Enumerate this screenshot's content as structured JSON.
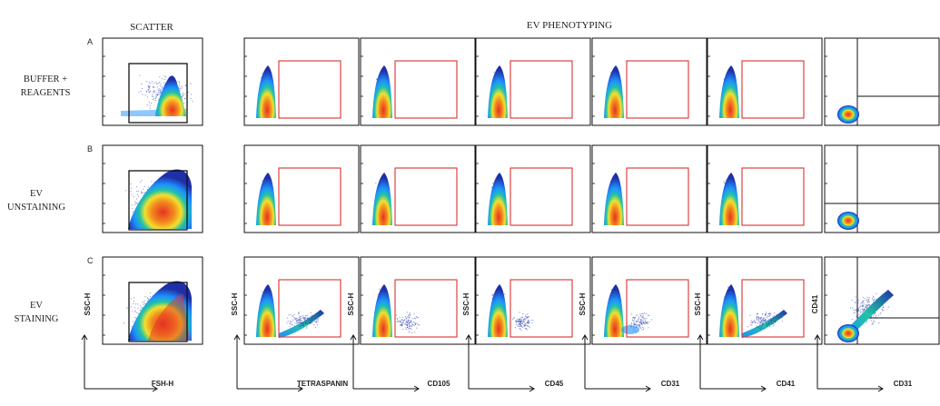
{
  "chart_data": {
    "type": "scatter",
    "subtype": "flow-cytometry-density-grid",
    "headers": {
      "scatter": "SCATTER",
      "phenotyping": "EV PHENOTYPING"
    },
    "rows": [
      {
        "letter": "A",
        "label_lines": [
          "BUFFER +",
          "REAGENTS"
        ],
        "condition": "buffer"
      },
      {
        "letter": "B",
        "label_lines": [
          "EV",
          "UNSTAINING"
        ],
        "condition": "unstained"
      },
      {
        "letter": "C",
        "label_lines": [
          "EV",
          "STAINING"
        ],
        "condition": "stained"
      }
    ],
    "columns": [
      {
        "kind": "scatter",
        "xlabel": "FSH-H",
        "ylabel": "SSC-H"
      },
      {
        "kind": "marker",
        "xlabel": "TETRASPANIN",
        "ylabel": "SSC-H"
      },
      {
        "kind": "marker",
        "xlabel": "CD105",
        "ylabel": "SSC-H"
      },
      {
        "kind": "marker",
        "xlabel": "CD45",
        "ylabel": "SSC-H"
      },
      {
        "kind": "marker",
        "xlabel": "CD31",
        "ylabel": "SSC-H"
      },
      {
        "kind": "marker",
        "xlabel": "CD41",
        "ylabel": "SSC-H"
      },
      {
        "kind": "quadrant",
        "xlabel": "CD31",
        "ylabel": "CD41"
      }
    ],
    "gate_color": "#d9322e",
    "density_colors": [
      "#1f2fa8",
      "#1e90ff",
      "#22c3a6",
      "#f2e12c",
      "#f38b1f",
      "#e53221"
    ]
  }
}
